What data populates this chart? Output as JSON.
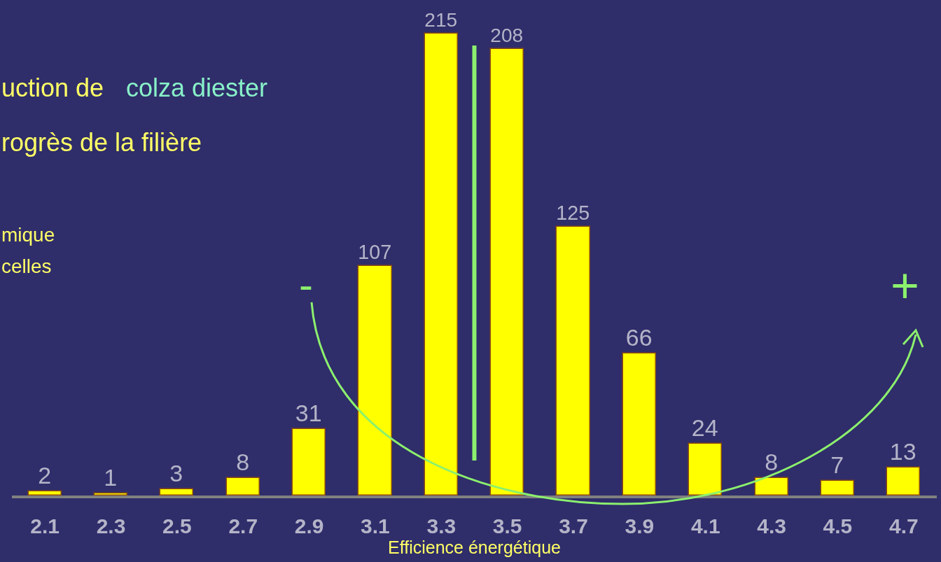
{
  "chart_data": {
    "type": "bar",
    "x": [
      2.1,
      2.3,
      2.5,
      2.7,
      2.9,
      3.1,
      3.3,
      3.5,
      3.7,
      3.9,
      4.1,
      4.3,
      4.5,
      4.7
    ],
    "values": [
      2,
      1,
      3,
      8,
      31,
      107,
      215,
      208,
      125,
      66,
      24,
      8,
      7,
      13
    ],
    "color": "#ffff00",
    "xlim": [
      2.0,
      4.8
    ],
    "xticks": [
      2.1,
      2.3,
      2.5,
      2.7,
      2.9,
      3.1,
      3.3,
      3.5,
      3.7,
      3.9,
      4.1,
      4.3,
      4.5,
      4.7
    ],
    "xlabel": "Efficience énergétique",
    "data_labels": true,
    "tick_labels": "x",
    "grid": false,
    "legend": false,
    "ref_lines": [
      {
        "axis": "x",
        "value": 3.4,
        "color": "#8cf06e"
      }
    ],
    "annotations": [
      "uction de",
      "colza diester",
      "rogrès de la filière",
      "mique",
      "celles",
      "-",
      "+"
    ]
  }
}
